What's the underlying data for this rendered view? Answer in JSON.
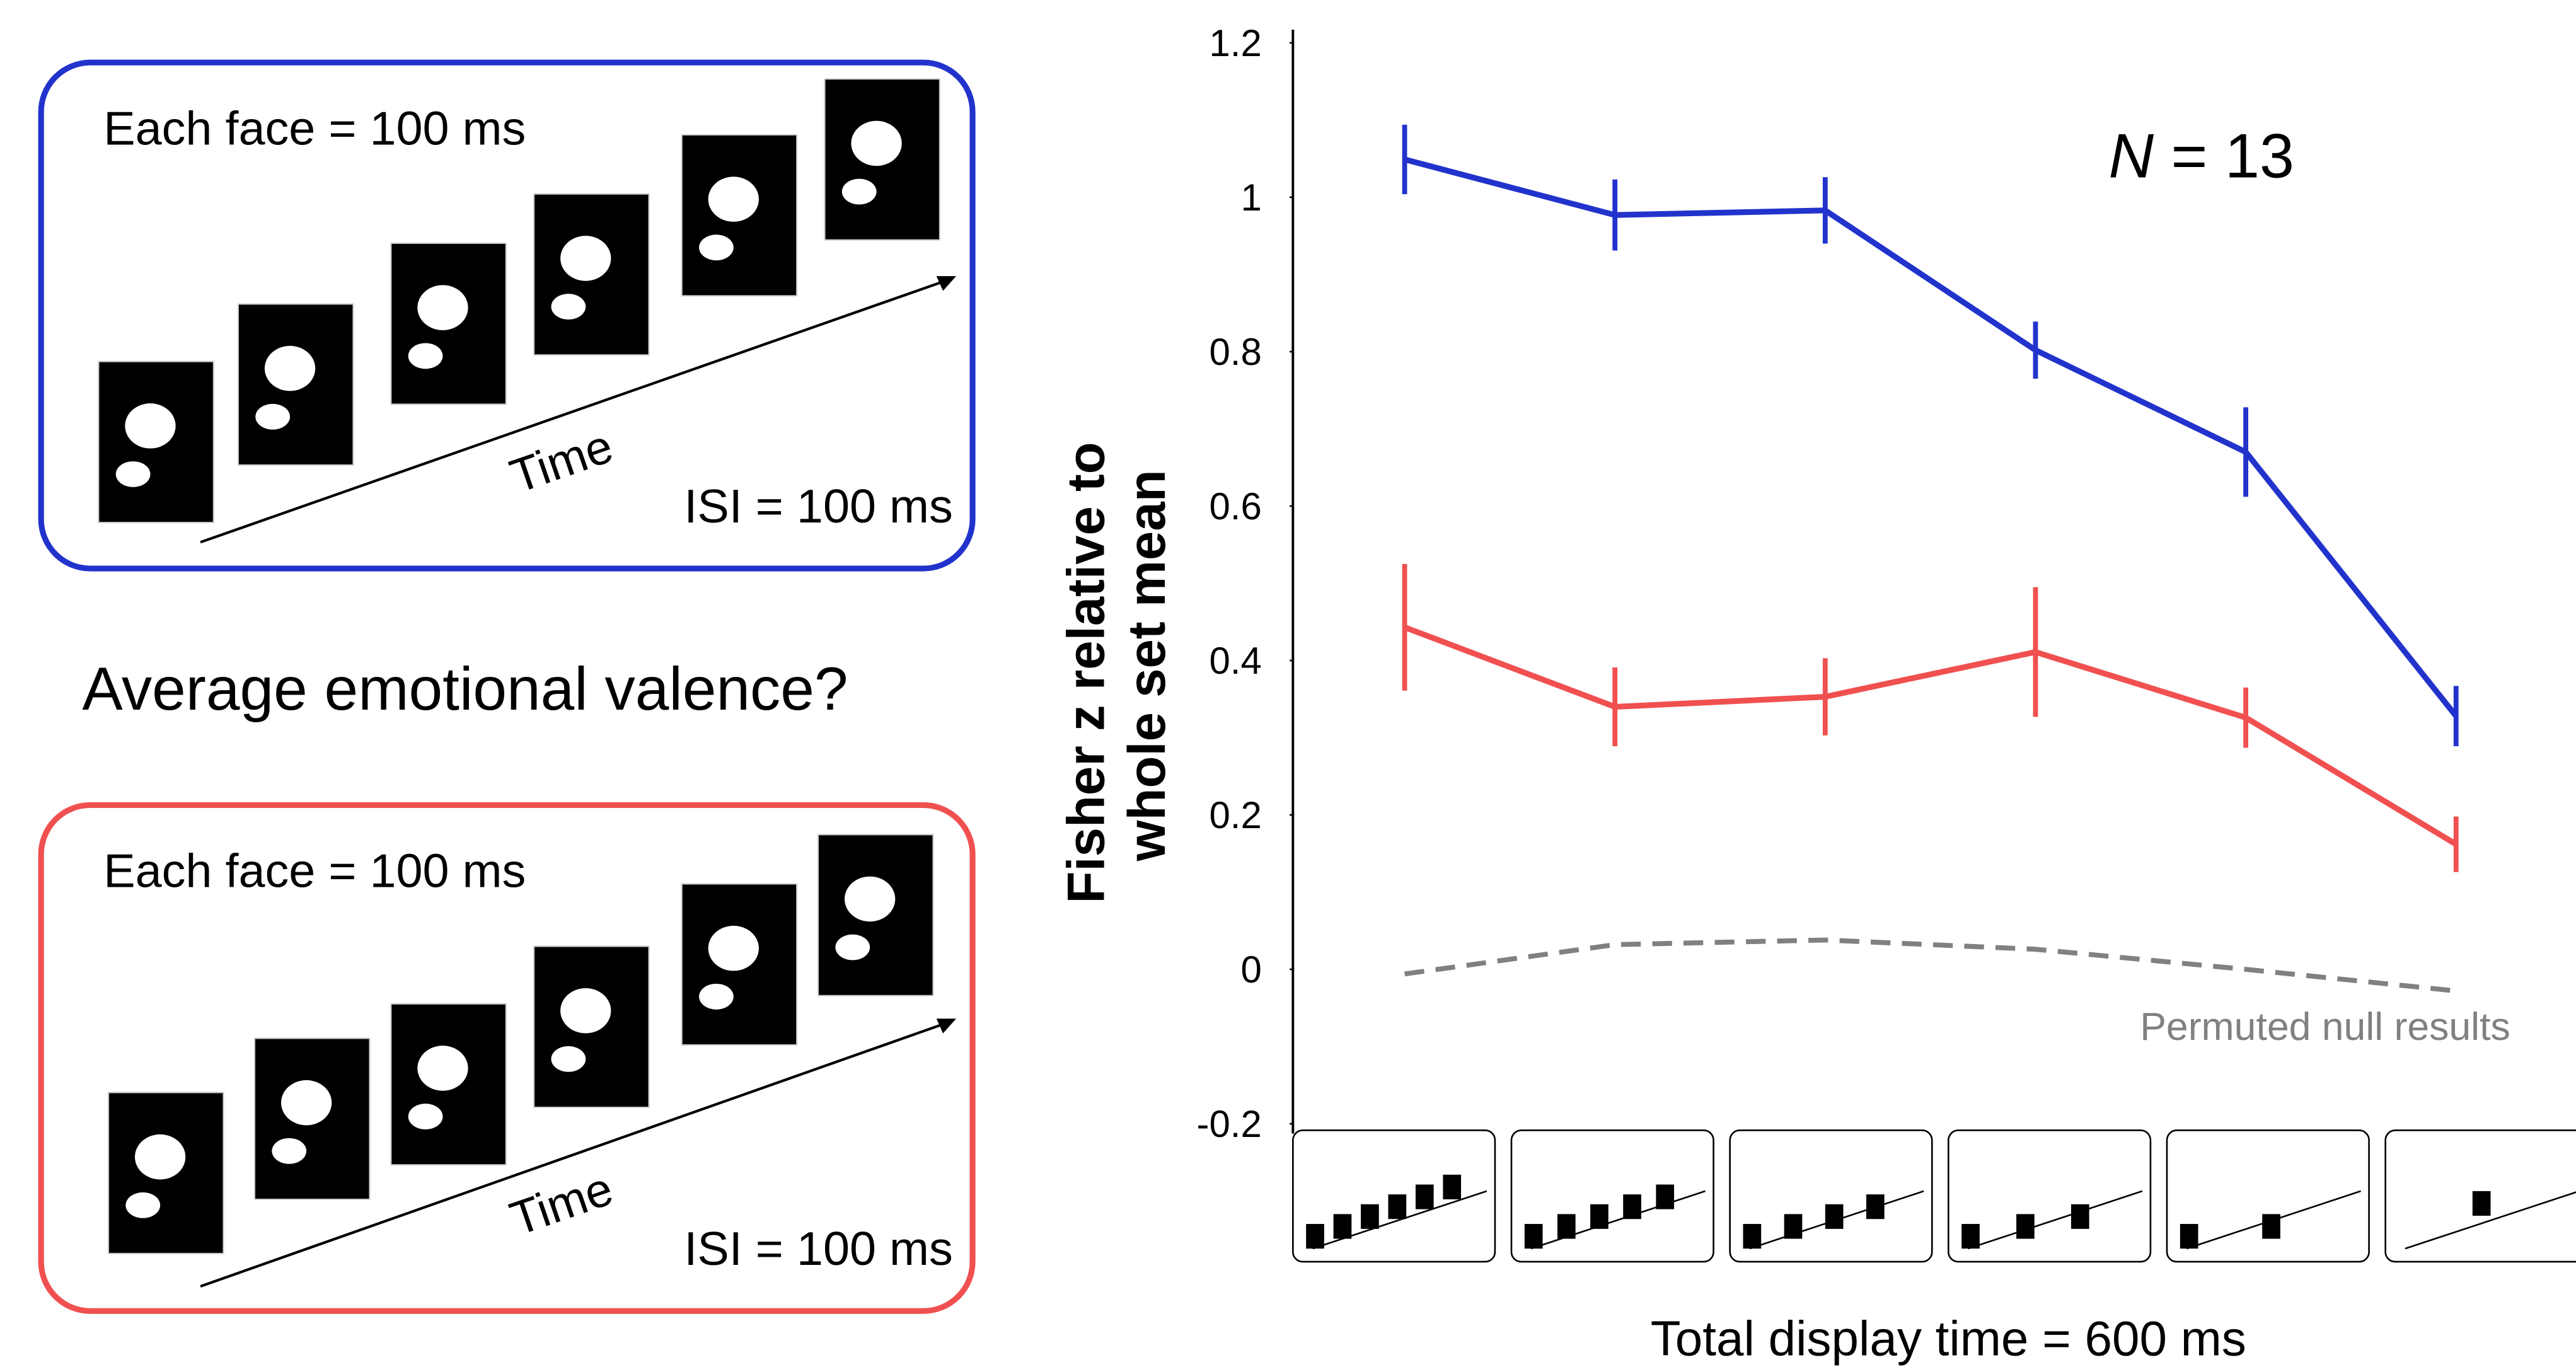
{
  "panels": [
    {
      "duration": "Each face = 100 ms",
      "axis": "Time",
      "isi": "ISI = 100 ms"
    },
    {
      "duration": "Each face = 100 ms",
      "axis": "Time",
      "isi": "ISI = 100 ms"
    }
  ],
  "question": "Average emotional valence?",
  "chart_data": {
    "type": "line",
    "y_label": [
      "Fisher z relative to",
      "whole set mean"
    ],
    "x_label": "Total display time = 600 ms",
    "annotation": {
      "variable": "N",
      "text": "= 13"
    },
    "categories": [
      null,
      null,
      null,
      null,
      null,
      null
    ],
    "ylim": [
      -0.2,
      1.2
    ],
    "yticks": [
      -0.2,
      0,
      0.2,
      0.4,
      0.6,
      0.8,
      1,
      1.2
    ],
    "series": [
      {
        "color": "#2233cc",
        "values": [
          1.049,
          0.977,
          0.983,
          0.802,
          0.67,
          0.328
        ],
        "errors": [
          0.045,
          0.046,
          0.043,
          0.037,
          0.058,
          0.039
        ]
      },
      {
        "color": "#f05050",
        "values": [
          0.443,
          0.34,
          0.353,
          0.411,
          0.326,
          0.162
        ],
        "errors": [
          0.082,
          0.051,
          0.05,
          0.084,
          0.039,
          0.036
        ]
      },
      {
        "name": "Permuted null results",
        "color": "#808080",
        "dashed": true,
        "values": [
          -0.006,
          0.032,
          0.038,
          0.026,
          0.0,
          -0.028
        ]
      }
    ]
  }
}
